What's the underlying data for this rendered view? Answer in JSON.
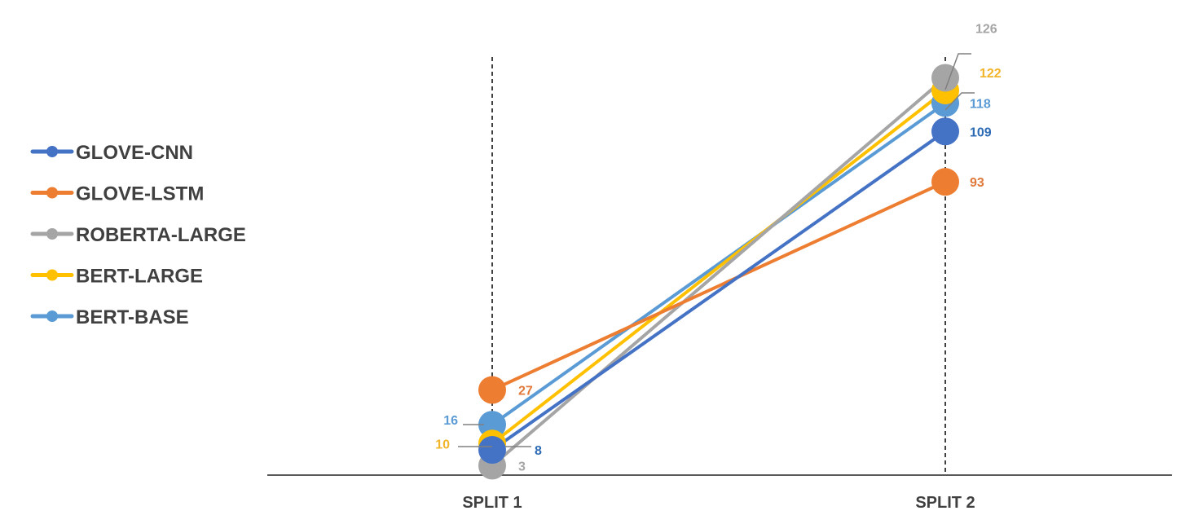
{
  "chart_data": {
    "type": "line",
    "title": "",
    "xlabel": "",
    "ylabel": "",
    "categories": [
      "SPLIT 1",
      "SPLIT 2"
    ],
    "ylim": [
      0,
      130
    ],
    "grid": false,
    "legend_position": "left",
    "series": [
      {
        "name": "GLOVE-CNN",
        "values": [
          8,
          109
        ],
        "color": "#4472C4",
        "label_color": "#2E6BB5"
      },
      {
        "name": "GLOVE-LSTM",
        "values": [
          27,
          93
        ],
        "color": "#ED7D31",
        "label_color": "#E0793A"
      },
      {
        "name": "ROBERTA-LARGE",
        "values": [
          3,
          126
        ],
        "color": "#A5A5A5",
        "label_color": "#A5A5A5"
      },
      {
        "name": "BERT-LARGE",
        "values": [
          10,
          122
        ],
        "color": "#FFC000",
        "label_color": "#F2B52A"
      },
      {
        "name": "BERT-BASE",
        "values": [
          16,
          118
        ],
        "color": "#5B9BD5",
        "label_color": "#5B9BD5"
      }
    ]
  }
}
